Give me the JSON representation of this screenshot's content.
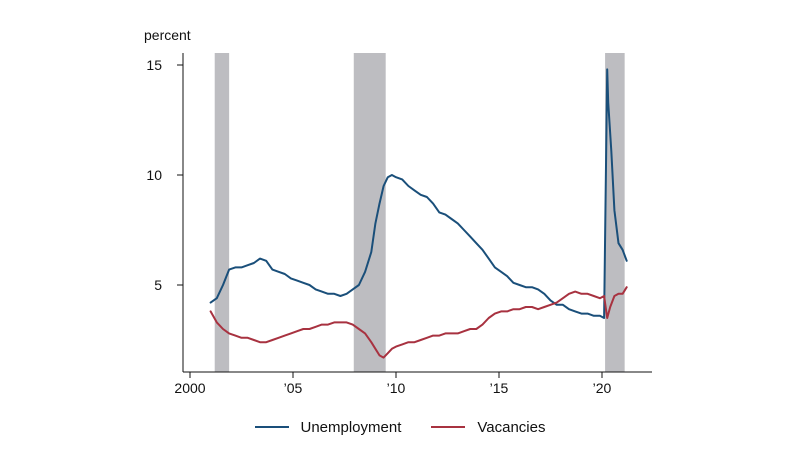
{
  "chart_data": {
    "type": "line",
    "unit_label": "percent",
    "x_ticks": [
      {
        "value": 2000,
        "label": "2000"
      },
      {
        "value": 2005,
        "label": "’05"
      },
      {
        "value": 2010,
        "label": "’10"
      },
      {
        "value": 2015,
        "label": "’15"
      },
      {
        "value": 2020,
        "label": "’20"
      }
    ],
    "y_ticks": [
      {
        "value": 5,
        "label": "5"
      },
      {
        "value": 10,
        "label": "10"
      },
      {
        "value": 15,
        "label": "15"
      }
    ],
    "xlim": [
      2000,
      2021.7
    ],
    "ylim": [
      1,
      15.5
    ],
    "grid": false,
    "legend_position": "bottom",
    "recessions": [
      [
        2001.2,
        2001.9
      ],
      [
        2007.95,
        2009.5
      ],
      [
        2020.15,
        2021.1
      ]
    ],
    "series": [
      {
        "name": "Unemployment",
        "color": "#1a4f7a",
        "x": [
          2001.0,
          2001.3,
          2001.6,
          2001.9,
          2002.2,
          2002.5,
          2002.8,
          2003.1,
          2003.4,
          2003.7,
          2004.0,
          2004.3,
          2004.6,
          2004.9,
          2005.2,
          2005.5,
          2005.8,
          2006.1,
          2006.4,
          2006.7,
          2007.0,
          2007.3,
          2007.6,
          2007.9,
          2008.2,
          2008.5,
          2008.8,
          2009.0,
          2009.2,
          2009.4,
          2009.6,
          2009.8,
          2010.0,
          2010.3,
          2010.6,
          2010.9,
          2011.2,
          2011.5,
          2011.8,
          2012.1,
          2012.4,
          2012.7,
          2013.0,
          2013.3,
          2013.6,
          2013.9,
          2014.2,
          2014.5,
          2014.8,
          2015.1,
          2015.4,
          2015.7,
          2016.0,
          2016.3,
          2016.6,
          2016.9,
          2017.2,
          2017.5,
          2017.8,
          2018.1,
          2018.4,
          2018.7,
          2019.0,
          2019.3,
          2019.6,
          2019.9,
          2020.1,
          2020.25,
          2020.3,
          2020.45,
          2020.6,
          2020.8,
          2021.0,
          2021.2
        ],
        "y": [
          4.2,
          4.4,
          5.0,
          5.7,
          5.8,
          5.8,
          5.9,
          6.0,
          6.2,
          6.1,
          5.7,
          5.6,
          5.5,
          5.3,
          5.2,
          5.1,
          5.0,
          4.8,
          4.7,
          4.6,
          4.6,
          4.5,
          4.6,
          4.8,
          5.0,
          5.6,
          6.5,
          7.8,
          8.7,
          9.5,
          9.9,
          10.0,
          9.9,
          9.8,
          9.5,
          9.3,
          9.1,
          9.0,
          8.7,
          8.3,
          8.2,
          8.0,
          7.8,
          7.5,
          7.2,
          6.9,
          6.6,
          6.2,
          5.8,
          5.6,
          5.4,
          5.1,
          5.0,
          4.9,
          4.9,
          4.8,
          4.6,
          4.3,
          4.1,
          4.1,
          3.9,
          3.8,
          3.7,
          3.7,
          3.6,
          3.6,
          3.5,
          14.8,
          13.3,
          11.1,
          8.4,
          6.9,
          6.6,
          6.1
        ]
      },
      {
        "name": "Vacancies",
        "color": "#a83240",
        "x": [
          2001.0,
          2001.3,
          2001.6,
          2001.9,
          2002.2,
          2002.5,
          2002.8,
          2003.1,
          2003.4,
          2003.7,
          2004.0,
          2004.3,
          2004.6,
          2004.9,
          2005.2,
          2005.5,
          2005.8,
          2006.1,
          2006.4,
          2006.7,
          2007.0,
          2007.3,
          2007.6,
          2007.9,
          2008.2,
          2008.5,
          2008.8,
          2009.0,
          2009.2,
          2009.4,
          2009.6,
          2009.8,
          2010.0,
          2010.3,
          2010.6,
          2010.9,
          2011.2,
          2011.5,
          2011.8,
          2012.1,
          2012.4,
          2012.7,
          2013.0,
          2013.3,
          2013.6,
          2013.9,
          2014.2,
          2014.5,
          2014.8,
          2015.1,
          2015.4,
          2015.7,
          2016.0,
          2016.3,
          2016.6,
          2016.9,
          2017.2,
          2017.5,
          2017.8,
          2018.1,
          2018.4,
          2018.7,
          2019.0,
          2019.3,
          2019.6,
          2019.9,
          2020.1,
          2020.25,
          2020.4,
          2020.6,
          2020.8,
          2021.0,
          2021.2
        ],
        "y": [
          3.8,
          3.3,
          3.0,
          2.8,
          2.7,
          2.6,
          2.6,
          2.5,
          2.4,
          2.4,
          2.5,
          2.6,
          2.7,
          2.8,
          2.9,
          3.0,
          3.0,
          3.1,
          3.2,
          3.2,
          3.3,
          3.3,
          3.3,
          3.2,
          3.0,
          2.8,
          2.4,
          2.1,
          1.8,
          1.7,
          1.9,
          2.1,
          2.2,
          2.3,
          2.4,
          2.4,
          2.5,
          2.6,
          2.7,
          2.7,
          2.8,
          2.8,
          2.8,
          2.9,
          3.0,
          3.0,
          3.2,
          3.5,
          3.7,
          3.8,
          3.8,
          3.9,
          3.9,
          4.0,
          4.0,
          3.9,
          4.0,
          4.1,
          4.2,
          4.4,
          4.6,
          4.7,
          4.6,
          4.6,
          4.5,
          4.4,
          4.5,
          3.5,
          4.0,
          4.5,
          4.6,
          4.6,
          4.9
        ]
      }
    ]
  }
}
